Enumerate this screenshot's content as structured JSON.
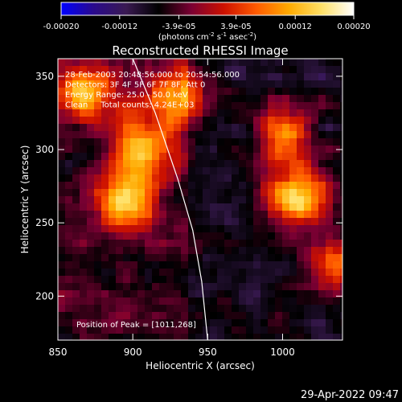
{
  "colorbar": {
    "ticks": [
      "-0.00020",
      "-0.00012",
      "-3.9e-05",
      "3.9e-05",
      "0.00012",
      "0.00020"
    ],
    "tick_values": [
      -0.0002,
      -0.00012,
      -3.9e-05,
      3.9e-05,
      0.00012,
      0.0002
    ],
    "range": [
      -0.0002,
      0.0002
    ],
    "label": "(photons cm^-2 s^-1 asec^-2)",
    "label_parts": {
      "pre1": "(photons cm",
      "sup1": "-2",
      "mid1": " s",
      "sup2": "-1",
      "mid2": " asec",
      "sup3": "-2",
      "post": ")"
    },
    "colors": [
      "#0000ff",
      "#2a0a8c",
      "#3a1a52",
      "#000000",
      "#7a0033",
      "#cc1100",
      "#ff5a00",
      "#ffaa00",
      "#ffe066",
      "#ffffff"
    ]
  },
  "chart_data": {
    "type": "heatmap",
    "title": "Reconstructed RHESSI Image",
    "xlabel": "Heliocentric X (arcsec)",
    "ylabel": "Heliocentric Y (arcsec)",
    "xlim": [
      850,
      1040
    ],
    "ylim": [
      170,
      362
    ],
    "xticks": [
      850,
      900,
      950,
      1000
    ],
    "yticks": [
      200,
      250,
      300,
      350
    ],
    "annotations": [
      "28-Feb-2003 20:48:56.000 to 20:54:56.000",
      "Detectors: 3F 4F 5F 6F 7F 8F, Att 0",
      "Energy Range: 25.0 - 50.0 keV",
      "Clean     Total counts: 4.24E+03"
    ],
    "peak_label": "Position of Peak = [1011,268]",
    "peak": [
      1011,
      268
    ],
    "limb_curve": [
      [
        900,
        362
      ],
      [
        915,
        325
      ],
      [
        930,
        280
      ],
      [
        940,
        245
      ],
      [
        946,
        210
      ],
      [
        950,
        170
      ]
    ],
    "bright_regions": [
      {
        "x": 905,
        "y": 300,
        "level": 0.8
      },
      {
        "x": 895,
        "y": 265,
        "level": 0.95
      },
      {
        "x": 870,
        "y": 340,
        "level": 0.7
      },
      {
        "x": 1011,
        "y": 268,
        "level": 1.0
      },
      {
        "x": 930,
        "y": 335,
        "level": 0.75
      },
      {
        "x": 1000,
        "y": 310,
        "level": 0.7
      },
      {
        "x": 1035,
        "y": 220,
        "level": 0.6
      }
    ]
  },
  "footer": {
    "timestamp": "29-Apr-2022 09:47"
  }
}
